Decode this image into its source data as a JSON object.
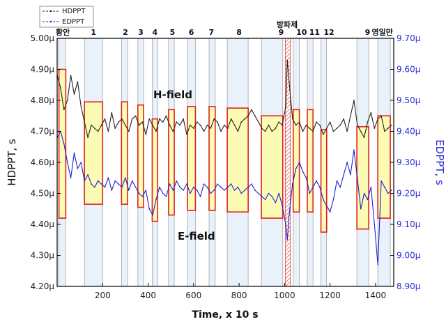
{
  "chart_data": {
    "type": "line",
    "title": "",
    "xlabel": "Time, x 10 s",
    "ylabel_left": "HDPPT, s",
    "ylabel_right": "EDPPT, s",
    "xlim": [
      0,
      1480
    ],
    "ylim_left": [
      4.2,
      5.0
    ],
    "ylim_right": [
      8.9,
      9.7
    ],
    "x_ticks": [
      200,
      400,
      600,
      800,
      1000,
      1200,
      1400
    ],
    "y_ticks_left": [
      "4.20µ",
      "4.30µ",
      "4.40µ",
      "4.50µ",
      "4.60µ",
      "4.70µ",
      "4.80µ",
      "4.90µ",
      "5.00µ"
    ],
    "y_ticks_right": [
      "8.90µ",
      "9.00µ",
      "9.10µ",
      "9.20µ",
      "9.30µ",
      "9.40µ",
      "9.50µ",
      "9.60µ",
      "9.70µ"
    ],
    "legend": {
      "position": "top-left",
      "entries": [
        "HDPPT",
        "EDPPT"
      ]
    },
    "annotations": [
      "H-field",
      "E-field"
    ],
    "top_title": "방파제",
    "segment_labels": [
      {
        "label": "황안",
        "x": 25
      },
      {
        "label": "1",
        "x": 160
      },
      {
        "label": "2",
        "x": 300
      },
      {
        "label": "3",
        "x": 368
      },
      {
        "label": "4",
        "x": 430
      },
      {
        "label": "5",
        "x": 507
      },
      {
        "label": "6",
        "x": 590
      },
      {
        "label": "7",
        "x": 678
      },
      {
        "label": "8",
        "x": 800
      },
      {
        "label": "9",
        "x": 985
      },
      {
        "label": "10",
        "x": 1075
      },
      {
        "label": "11",
        "x": 1132
      },
      {
        "label": "12",
        "x": 1195
      },
      {
        "label": "9",
        "x": 1365
      },
      {
        "label": "영일만",
        "x": 1430
      }
    ],
    "regions": [
      {
        "x0": 8,
        "x1": 38,
        "hdppt_bottom": 4.42,
        "hdppt_top": 4.9
      },
      {
        "x0": 120,
        "x1": 200,
        "hdppt_bottom": 4.465,
        "hdppt_top": 4.795
      },
      {
        "x0": 283,
        "x1": 310,
        "hdppt_bottom": 4.465,
        "hdppt_top": 4.795
      },
      {
        "x0": 355,
        "x1": 380,
        "hdppt_bottom": 4.455,
        "hdppt_top": 4.785
      },
      {
        "x0": 418,
        "x1": 442,
        "hdppt_bottom": 4.41,
        "hdppt_top": 4.74
      },
      {
        "x0": 490,
        "x1": 515,
        "hdppt_bottom": 4.43,
        "hdppt_top": 4.77
      },
      {
        "x0": 573,
        "x1": 608,
        "hdppt_bottom": 4.445,
        "hdppt_top": 4.78
      },
      {
        "x0": 668,
        "x1": 695,
        "hdppt_bottom": 4.445,
        "hdppt_top": 4.78
      },
      {
        "x0": 748,
        "x1": 840,
        "hdppt_bottom": 4.44,
        "hdppt_top": 4.775
      },
      {
        "x0": 898,
        "x1": 992,
        "hdppt_bottom": 4.42,
        "hdppt_top": 4.75
      },
      {
        "x0": 1038,
        "x1": 1065,
        "hdppt_bottom": 4.44,
        "hdppt_top": 4.77
      },
      {
        "x0": 1100,
        "x1": 1125,
        "hdppt_bottom": 4.44,
        "hdppt_top": 4.77
      },
      {
        "x0": 1160,
        "x1": 1185,
        "hdppt_bottom": 4.375,
        "hdppt_top": 4.705
      },
      {
        "x0": 1318,
        "x1": 1370,
        "hdppt_bottom": 4.385,
        "hdppt_top": 4.715
      },
      {
        "x0": 1410,
        "x1": 1465,
        "hdppt_bottom": 4.42,
        "hdppt_top": 4.75
      }
    ],
    "hatched_region": {
      "x0": 1003,
      "x1": 1025
    },
    "series": [
      {
        "name": "HDPPT",
        "axis": "left",
        "color": "#222222",
        "x": [
          0,
          15,
          30,
          45,
          60,
          75,
          90,
          105,
          120,
          135,
          150,
          165,
          180,
          195,
          210,
          225,
          240,
          255,
          270,
          285,
          300,
          315,
          330,
          345,
          360,
          375,
          390,
          405,
          420,
          435,
          450,
          465,
          480,
          495,
          510,
          525,
          540,
          555,
          570,
          585,
          600,
          615,
          630,
          645,
          660,
          675,
          690,
          705,
          720,
          735,
          750,
          765,
          780,
          795,
          810,
          825,
          840,
          855,
          870,
          885,
          900,
          915,
          930,
          945,
          960,
          975,
          990,
          1005,
          1012,
          1020,
          1035,
          1050,
          1065,
          1080,
          1095,
          1110,
          1125,
          1140,
          1155,
          1170,
          1185,
          1200,
          1215,
          1230,
          1245,
          1260,
          1275,
          1290,
          1305,
          1320,
          1335,
          1350,
          1365,
          1380,
          1395,
          1410,
          1425,
          1440,
          1455,
          1470
        ],
        "y": [
          4.88,
          4.84,
          4.77,
          4.8,
          4.88,
          4.82,
          4.86,
          4.78,
          4.73,
          4.68,
          4.72,
          4.71,
          4.7,
          4.72,
          4.74,
          4.7,
          4.76,
          4.71,
          4.73,
          4.74,
          4.72,
          4.7,
          4.74,
          4.75,
          4.72,
          4.73,
          4.69,
          4.74,
          4.72,
          4.7,
          4.74,
          4.73,
          4.75,
          4.72,
          4.7,
          4.73,
          4.72,
          4.74,
          4.69,
          4.72,
          4.71,
          4.73,
          4.72,
          4.7,
          4.72,
          4.71,
          4.74,
          4.73,
          4.7,
          4.72,
          4.71,
          4.74,
          4.72,
          4.7,
          4.73,
          4.74,
          4.75,
          4.77,
          4.75,
          4.73,
          4.71,
          4.7,
          4.72,
          4.7,
          4.71,
          4.73,
          4.72,
          4.78,
          4.93,
          4.86,
          4.74,
          4.72,
          4.73,
          4.7,
          4.72,
          4.71,
          4.7,
          4.73,
          4.72,
          4.69,
          4.71,
          4.73,
          4.7,
          4.71,
          4.72,
          4.74,
          4.7,
          4.75,
          4.8,
          4.72,
          4.7,
          4.68,
          4.73,
          4.76,
          4.71,
          4.74,
          4.75,
          4.7,
          4.71,
          4.72
        ]
      },
      {
        "name": "EDPPT",
        "axis": "right",
        "color": "#1f1fd0",
        "x": [
          0,
          15,
          30,
          45,
          60,
          75,
          90,
          105,
          120,
          135,
          150,
          165,
          180,
          195,
          210,
          225,
          240,
          255,
          270,
          285,
          300,
          315,
          330,
          345,
          360,
          375,
          390,
          405,
          420,
          435,
          450,
          465,
          480,
          495,
          510,
          525,
          540,
          555,
          570,
          585,
          600,
          615,
          630,
          645,
          660,
          675,
          690,
          705,
          720,
          735,
          750,
          765,
          780,
          795,
          810,
          825,
          840,
          855,
          870,
          885,
          900,
          915,
          930,
          945,
          960,
          975,
          990,
          1005,
          1012,
          1020,
          1035,
          1050,
          1065,
          1080,
          1095,
          1110,
          1125,
          1140,
          1155,
          1170,
          1185,
          1200,
          1215,
          1230,
          1245,
          1260,
          1275,
          1290,
          1305,
          1320,
          1335,
          1350,
          1365,
          1380,
          1395,
          1410,
          1425,
          1440,
          1455,
          1470
        ],
        "y": [
          9.38,
          9.4,
          9.36,
          9.3,
          9.25,
          9.33,
          9.28,
          9.3,
          9.24,
          9.26,
          9.23,
          9.22,
          9.24,
          9.23,
          9.22,
          9.25,
          9.21,
          9.24,
          9.23,
          9.22,
          9.25,
          9.21,
          9.24,
          9.22,
          9.2,
          9.19,
          9.21,
          9.15,
          9.13,
          9.18,
          9.22,
          9.2,
          9.19,
          9.23,
          9.21,
          9.24,
          9.22,
          9.21,
          9.23,
          9.2,
          9.22,
          9.21,
          9.19,
          9.23,
          9.22,
          9.2,
          9.21,
          9.23,
          9.22,
          9.21,
          9.22,
          9.23,
          9.21,
          9.22,
          9.2,
          9.21,
          9.22,
          9.23,
          9.21,
          9.2,
          9.19,
          9.18,
          9.2,
          9.19,
          9.17,
          9.2,
          9.16,
          9.1,
          9.05,
          9.13,
          9.23,
          9.28,
          9.3,
          9.27,
          9.25,
          9.2,
          9.22,
          9.24,
          9.22,
          9.18,
          9.16,
          9.14,
          9.18,
          9.24,
          9.22,
          9.26,
          9.3,
          9.26,
          9.34,
          9.25,
          9.15,
          9.2,
          9.18,
          9.22,
          9.1,
          8.97,
          9.24,
          9.22,
          9.2,
          9.21
        ]
      }
    ]
  }
}
